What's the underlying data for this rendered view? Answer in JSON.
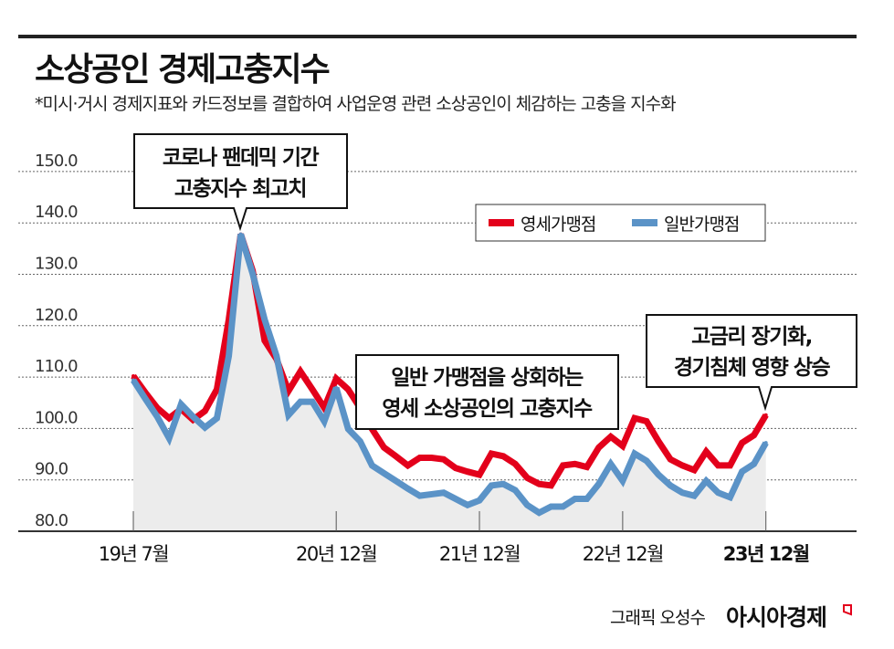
{
  "header": {
    "title": "소상공인 경제고충지수",
    "subtitle": "*미시·거시 경제지표와 카드정보를 결합하여 사업운영 관련 소상공인이 체감하는 고충을 지수화"
  },
  "chart_data": {
    "type": "line",
    "title": "소상공인 경제고충지수",
    "xlabel": "",
    "ylabel": "",
    "ylim": [
      80,
      150
    ],
    "yticks": [
      "80.0",
      "90.0",
      "100.0",
      "110.0",
      "120.0",
      "130.0",
      "140.0",
      "150.0"
    ],
    "grid": true,
    "legend_position": "top-right",
    "x_range": [
      "2019-07",
      "2023-12"
    ],
    "xticks": [
      {
        "label": "19년 7월",
        "month_index": 0
      },
      {
        "label": "20년 12월",
        "month_index": 17
      },
      {
        "label": "21년 12월",
        "month_index": 29
      },
      {
        "label": "22년 12월",
        "month_index": 41
      },
      {
        "label": "23년 12월",
        "month_index": 53
      }
    ],
    "series": [
      {
        "name": "영세가맹점",
        "color": "#e3001b",
        "values": [
          110.2,
          107.0,
          104.0,
          102.0,
          103.8,
          101.7,
          103.4,
          107.6,
          121.2,
          137.8,
          130.7,
          117.1,
          113.5,
          107.3,
          111.1,
          107.6,
          104.0,
          109.7,
          107.6,
          104.0,
          99.9,
          96.3,
          94.6,
          92.8,
          94.3,
          94.3,
          94.0,
          92.3,
          91.6,
          91.0,
          95.1,
          94.6,
          93.1,
          90.4,
          89.2,
          88.9,
          92.8,
          93.1,
          92.5,
          96.3,
          98.4,
          96.6,
          102.0,
          101.4,
          97.5,
          94.0,
          92.8,
          91.9,
          95.5,
          92.8,
          92.8,
          97.2,
          98.7,
          102.6
        ]
      },
      {
        "name": "일반가맹점",
        "color": "#5b93c7",
        "values": [
          109.4,
          105.8,
          102.3,
          98.1,
          104.7,
          102.3,
          100.2,
          102.0,
          114.1,
          137.8,
          130.1,
          121.2,
          114.1,
          102.6,
          105.2,
          105.2,
          101.4,
          107.9,
          99.9,
          97.5,
          92.8,
          91.3,
          89.8,
          88.3,
          86.9,
          87.2,
          87.5,
          86.3,
          85.1,
          86.0,
          88.9,
          89.2,
          88.0,
          85.1,
          83.6,
          84.8,
          84.8,
          86.3,
          86.3,
          89.2,
          93.1,
          89.8,
          95.1,
          93.7,
          91.0,
          88.9,
          87.5,
          86.9,
          89.8,
          87.5,
          86.6,
          91.6,
          93.1,
          97.2
        ]
      }
    ],
    "annotations": [
      {
        "lines": [
          "코로나 팬데믹 기간",
          "고충지수 최고치"
        ]
      },
      {
        "lines": [
          "일반 가맹점을 상회하는",
          "영세 소상공인의 고충지수"
        ]
      },
      {
        "lines": [
          "고금리 장기화,",
          "경기침체 영향 상승"
        ]
      }
    ]
  },
  "footer": {
    "credit": "그래픽 오성수",
    "brand": "아시아경제"
  },
  "colors": {
    "fill": "#ececec",
    "grid": "#666666"
  }
}
